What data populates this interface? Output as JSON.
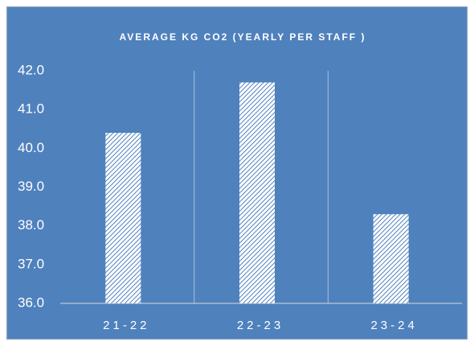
{
  "chart_data": {
    "type": "bar",
    "title": "AVERAGE KG CO2 (YEARLY PER STAFF )",
    "categories": [
      "21-22",
      "22-23",
      "23-24"
    ],
    "values": [
      40.4,
      41.7,
      38.3
    ],
    "color": "#4f81bd",
    "ylim": [
      36,
      42
    ],
    "yticks": [
      {
        "value": 36,
        "label": "36.0"
      },
      {
        "value": 37,
        "label": "37.0"
      },
      {
        "value": 38,
        "label": "38.0"
      },
      {
        "value": 39,
        "label": "39.0"
      },
      {
        "value": 40,
        "label": "40.0"
      },
      {
        "value": 41,
        "label": "41.0"
      },
      {
        "value": 42,
        "label": "42.0"
      }
    ],
    "grid": false
  }
}
